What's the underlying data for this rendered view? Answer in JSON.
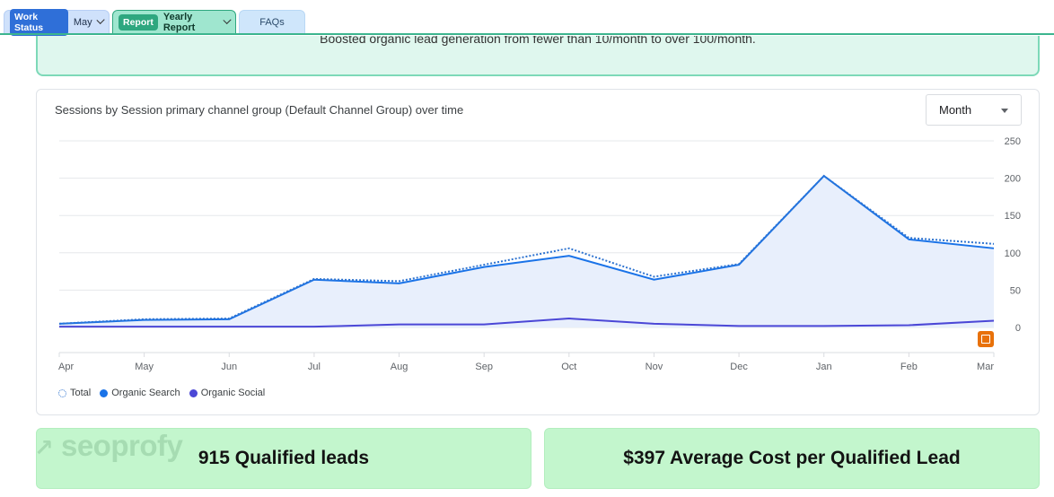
{
  "tabs": {
    "work_status": {
      "badge": "Work Status",
      "value": "May"
    },
    "report": {
      "badge": "Report",
      "value": "Yearly Report"
    },
    "faqs": {
      "label": "FAQs"
    }
  },
  "banner": {
    "text": "Boosted organic lead generation from fewer than 10/month to over 100/month."
  },
  "chart_card": {
    "title": "Sessions by Session primary channel group (Default Channel Group) over time",
    "period_select": "Month"
  },
  "chart_data": {
    "type": "line",
    "categories": [
      "Apr",
      "May",
      "Jun",
      "Jul",
      "Aug",
      "Sep",
      "Oct",
      "Nov",
      "Dec",
      "Jan",
      "Feb",
      "Mar"
    ],
    "y_ticks": [
      "250",
      "200",
      "150",
      "100",
      "50",
      "0"
    ],
    "ylim": [
      0,
      250
    ],
    "y_axis_side": "right",
    "grid": true,
    "legend_position": "bottom-left",
    "series": [
      {
        "name": "Total",
        "style": "dotted",
        "color": "#2f74d0",
        "values": [
          5,
          11,
          12,
          65,
          62,
          84,
          106,
          68,
          85,
          203,
          120,
          112
        ]
      },
      {
        "name": "Organic Search",
        "style": "solid-area",
        "color": "#1a73e8",
        "values": [
          5,
          10,
          11,
          64,
          59,
          81,
          96,
          64,
          84,
          203,
          118,
          106
        ]
      },
      {
        "name": "Organic Social",
        "style": "solid",
        "color": "#4b47d6",
        "values": [
          1,
          1,
          1,
          1,
          4,
          4,
          12,
          5,
          2,
          2,
          3,
          9
        ]
      }
    ]
  },
  "stats": {
    "logo": "seoprofy",
    "leads": "915 Qualified leads",
    "cost": "$397 Average Cost per Qualified Lead"
  },
  "colors": {
    "accent_green": "#2ea77f",
    "accent_blue": "#2f6fd8",
    "stat_bg": "#c3f6cd"
  }
}
